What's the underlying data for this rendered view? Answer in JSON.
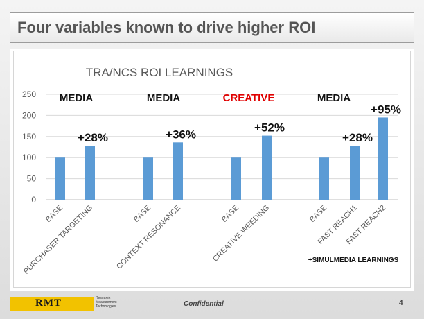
{
  "slide": {
    "title": "Four variables known to drive higher ROI",
    "footnote": "+SIMULMEDIA LEARNINGS",
    "footer": {
      "logo": "RMT",
      "logo_subtitle": [
        "Research",
        "Measurement",
        "Technologies"
      ],
      "confidential": "Confidential",
      "page": "4"
    }
  },
  "colors": {
    "bar": "#5b9bd5",
    "creative": "#e00000",
    "text": "#111111"
  },
  "chart_data": {
    "type": "bar",
    "title": "TRA/NCS ROI LEARNINGS",
    "ylim": [
      0,
      250
    ],
    "yticks": [
      0,
      50,
      100,
      150,
      200,
      250
    ],
    "grid": true,
    "categories": [
      "BASE",
      "PURCHASER TARGETING",
      "BASE",
      "CONTEXT RESONANCE",
      "BASE",
      "CREATIVE WEEDING",
      "BASE",
      "FAST REACH1",
      "FAST REACH2"
    ],
    "values": [
      100,
      128,
      100,
      136,
      100,
      152,
      100,
      128,
      195
    ],
    "data_labels": [
      "",
      "+28%",
      "",
      "+36%",
      "",
      "+52%",
      "",
      "+28%",
      "+95%"
    ],
    "groups": [
      {
        "label": "MEDIA",
        "highlight": false
      },
      {
        "label": "MEDIA",
        "highlight": false
      },
      {
        "label": "CREATIVE",
        "highlight": true
      },
      {
        "label": "MEDIA",
        "highlight": false
      }
    ]
  }
}
